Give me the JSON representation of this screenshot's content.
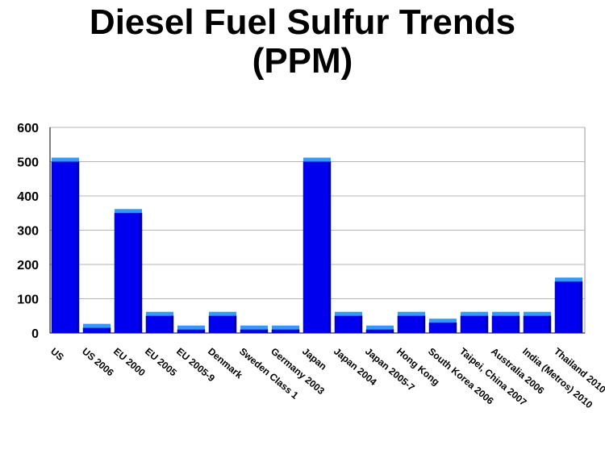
{
  "title_line1": "Diesel Fuel Sulfur Trends",
  "title_line2": "(PPM)",
  "chart_data": {
    "type": "bar",
    "title": "Diesel Fuel Sulfur Trends (PPM)",
    "categories": [
      "US",
      "US 2006",
      "EU 2000",
      "EU 2005",
      "EU 2005-9",
      "Denmark",
      "Sweden Class 1",
      "Germany 2003",
      "Japan",
      "Japan 2004",
      "Japan 2005-7",
      "Hong Kong",
      "South Korea 2006",
      "Taipei, China 2007",
      "Australia 2006",
      "India (Metros) 2010",
      "Thailand 2010"
    ],
    "series": [
      {
        "values": [
          500,
          15,
          350,
          50,
          10,
          50,
          10,
          10,
          500,
          50,
          10,
          50,
          30,
          50,
          50,
          50,
          150
        ]
      }
    ],
    "yticks": [
      0,
      100,
      200,
      300,
      400,
      500,
      600
    ],
    "ylim": [
      0,
      600
    ],
    "grid": true,
    "colors": {
      "bar_front": "#0000ee",
      "bar_top": "#3399ff",
      "grid": "#b5b5b5"
    }
  }
}
